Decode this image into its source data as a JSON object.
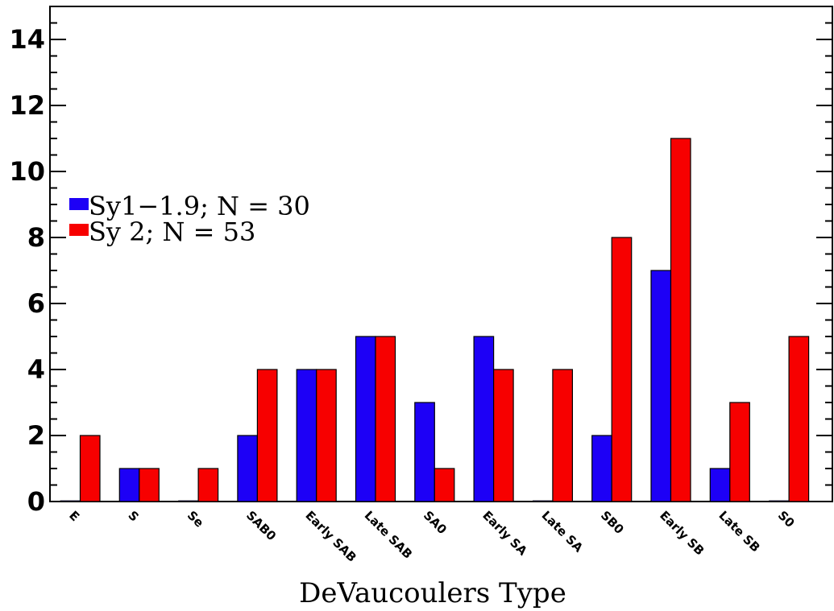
{
  "chart_data": {
    "type": "bar",
    "title": "",
    "xlabel": "DeVaucoulers Type",
    "ylabel": "",
    "ylim": [
      0,
      15
    ],
    "y_ticks": [
      0,
      2,
      4,
      6,
      8,
      10,
      12,
      14
    ],
    "y_tick_labels": [
      "0",
      "2",
      "4",
      "6",
      "8",
      "10",
      "12",
      "14"
    ],
    "grid": false,
    "legend_position": "left",
    "categories": [
      "E",
      "S",
      "Se",
      "SAB0",
      "Early SAB",
      "Late SAB",
      "SA0",
      "Early SA",
      "Late SA",
      "SB0",
      "Early SB",
      "Late SB",
      "S0"
    ],
    "series": [
      {
        "name": "Sy1−1.9; N = 30",
        "color": "#1d00f6",
        "values": [
          0,
          1,
          0,
          2,
          4,
          5,
          3,
          5,
          0,
          2,
          7,
          1,
          0
        ]
      },
      {
        "name": "Sy 2; N = 53",
        "color": "#f70000",
        "values": [
          2,
          1,
          1,
          4,
          4,
          5,
          1,
          4,
          4,
          8,
          11,
          3,
          5
        ]
      }
    ]
  }
}
